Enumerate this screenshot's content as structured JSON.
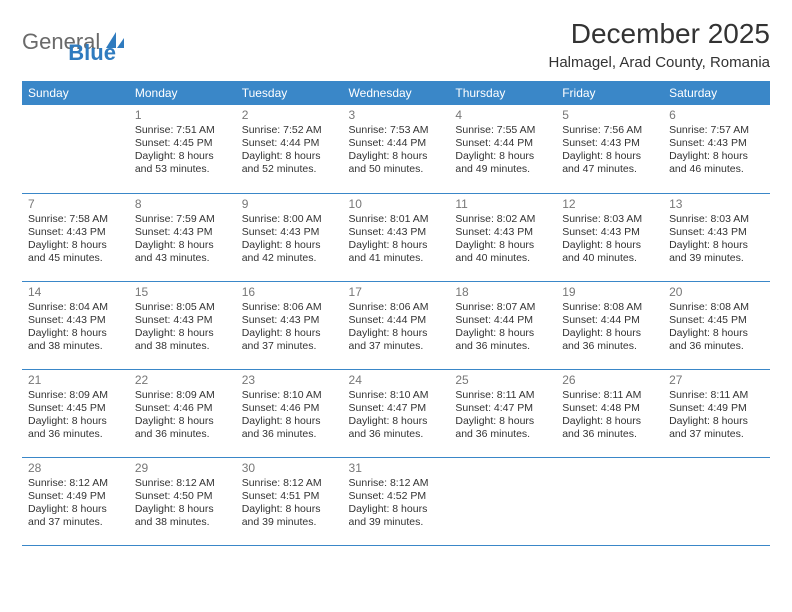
{
  "brand": {
    "part1": "General",
    "part2": "Blue"
  },
  "title": "December 2025",
  "location": "Halmagel, Arad County, Romania",
  "colors": {
    "header_bg": "#3a87c8",
    "header_text": "#ffffff",
    "border": "#3a87c8",
    "daynum": "#777777",
    "body_text": "#333333",
    "logo_gray": "#6a6a6a",
    "logo_blue": "#2f7bbf",
    "page_bg": "#ffffff"
  },
  "typography": {
    "title_fontsize": 28,
    "location_fontsize": 15,
    "weekday_fontsize": 12,
    "daynum_fontsize": 12,
    "cell_fontsize": 10.5
  },
  "weekdays": [
    "Sunday",
    "Monday",
    "Tuesday",
    "Wednesday",
    "Thursday",
    "Friday",
    "Saturday"
  ],
  "weeks": [
    [
      null,
      {
        "n": "1",
        "sr": "7:51 AM",
        "ss": "4:45 PM",
        "dl": "8 hours and 53 minutes."
      },
      {
        "n": "2",
        "sr": "7:52 AM",
        "ss": "4:44 PM",
        "dl": "8 hours and 52 minutes."
      },
      {
        "n": "3",
        "sr": "7:53 AM",
        "ss": "4:44 PM",
        "dl": "8 hours and 50 minutes."
      },
      {
        "n": "4",
        "sr": "7:55 AM",
        "ss": "4:44 PM",
        "dl": "8 hours and 49 minutes."
      },
      {
        "n": "5",
        "sr": "7:56 AM",
        "ss": "4:43 PM",
        "dl": "8 hours and 47 minutes."
      },
      {
        "n": "6",
        "sr": "7:57 AM",
        "ss": "4:43 PM",
        "dl": "8 hours and 46 minutes."
      }
    ],
    [
      {
        "n": "7",
        "sr": "7:58 AM",
        "ss": "4:43 PM",
        "dl": "8 hours and 45 minutes."
      },
      {
        "n": "8",
        "sr": "7:59 AM",
        "ss": "4:43 PM",
        "dl": "8 hours and 43 minutes."
      },
      {
        "n": "9",
        "sr": "8:00 AM",
        "ss": "4:43 PM",
        "dl": "8 hours and 42 minutes."
      },
      {
        "n": "10",
        "sr": "8:01 AM",
        "ss": "4:43 PM",
        "dl": "8 hours and 41 minutes."
      },
      {
        "n": "11",
        "sr": "8:02 AM",
        "ss": "4:43 PM",
        "dl": "8 hours and 40 minutes."
      },
      {
        "n": "12",
        "sr": "8:03 AM",
        "ss": "4:43 PM",
        "dl": "8 hours and 40 minutes."
      },
      {
        "n": "13",
        "sr": "8:03 AM",
        "ss": "4:43 PM",
        "dl": "8 hours and 39 minutes."
      }
    ],
    [
      {
        "n": "14",
        "sr": "8:04 AM",
        "ss": "4:43 PM",
        "dl": "8 hours and 38 minutes."
      },
      {
        "n": "15",
        "sr": "8:05 AM",
        "ss": "4:43 PM",
        "dl": "8 hours and 38 minutes."
      },
      {
        "n": "16",
        "sr": "8:06 AM",
        "ss": "4:43 PM",
        "dl": "8 hours and 37 minutes."
      },
      {
        "n": "17",
        "sr": "8:06 AM",
        "ss": "4:44 PM",
        "dl": "8 hours and 37 minutes."
      },
      {
        "n": "18",
        "sr": "8:07 AM",
        "ss": "4:44 PM",
        "dl": "8 hours and 36 minutes."
      },
      {
        "n": "19",
        "sr": "8:08 AM",
        "ss": "4:44 PM",
        "dl": "8 hours and 36 minutes."
      },
      {
        "n": "20",
        "sr": "8:08 AM",
        "ss": "4:45 PM",
        "dl": "8 hours and 36 minutes."
      }
    ],
    [
      {
        "n": "21",
        "sr": "8:09 AM",
        "ss": "4:45 PM",
        "dl": "8 hours and 36 minutes."
      },
      {
        "n": "22",
        "sr": "8:09 AM",
        "ss": "4:46 PM",
        "dl": "8 hours and 36 minutes."
      },
      {
        "n": "23",
        "sr": "8:10 AM",
        "ss": "4:46 PM",
        "dl": "8 hours and 36 minutes."
      },
      {
        "n": "24",
        "sr": "8:10 AM",
        "ss": "4:47 PM",
        "dl": "8 hours and 36 minutes."
      },
      {
        "n": "25",
        "sr": "8:11 AM",
        "ss": "4:47 PM",
        "dl": "8 hours and 36 minutes."
      },
      {
        "n": "26",
        "sr": "8:11 AM",
        "ss": "4:48 PM",
        "dl": "8 hours and 36 minutes."
      },
      {
        "n": "27",
        "sr": "8:11 AM",
        "ss": "4:49 PM",
        "dl": "8 hours and 37 minutes."
      }
    ],
    [
      {
        "n": "28",
        "sr": "8:12 AM",
        "ss": "4:49 PM",
        "dl": "8 hours and 37 minutes."
      },
      {
        "n": "29",
        "sr": "8:12 AM",
        "ss": "4:50 PM",
        "dl": "8 hours and 38 minutes."
      },
      {
        "n": "30",
        "sr": "8:12 AM",
        "ss": "4:51 PM",
        "dl": "8 hours and 39 minutes."
      },
      {
        "n": "31",
        "sr": "8:12 AM",
        "ss": "4:52 PM",
        "dl": "8 hours and 39 minutes."
      },
      null,
      null,
      null
    ]
  ],
  "labels": {
    "sunrise": "Sunrise:",
    "sunset": "Sunset:",
    "daylight": "Daylight:"
  }
}
